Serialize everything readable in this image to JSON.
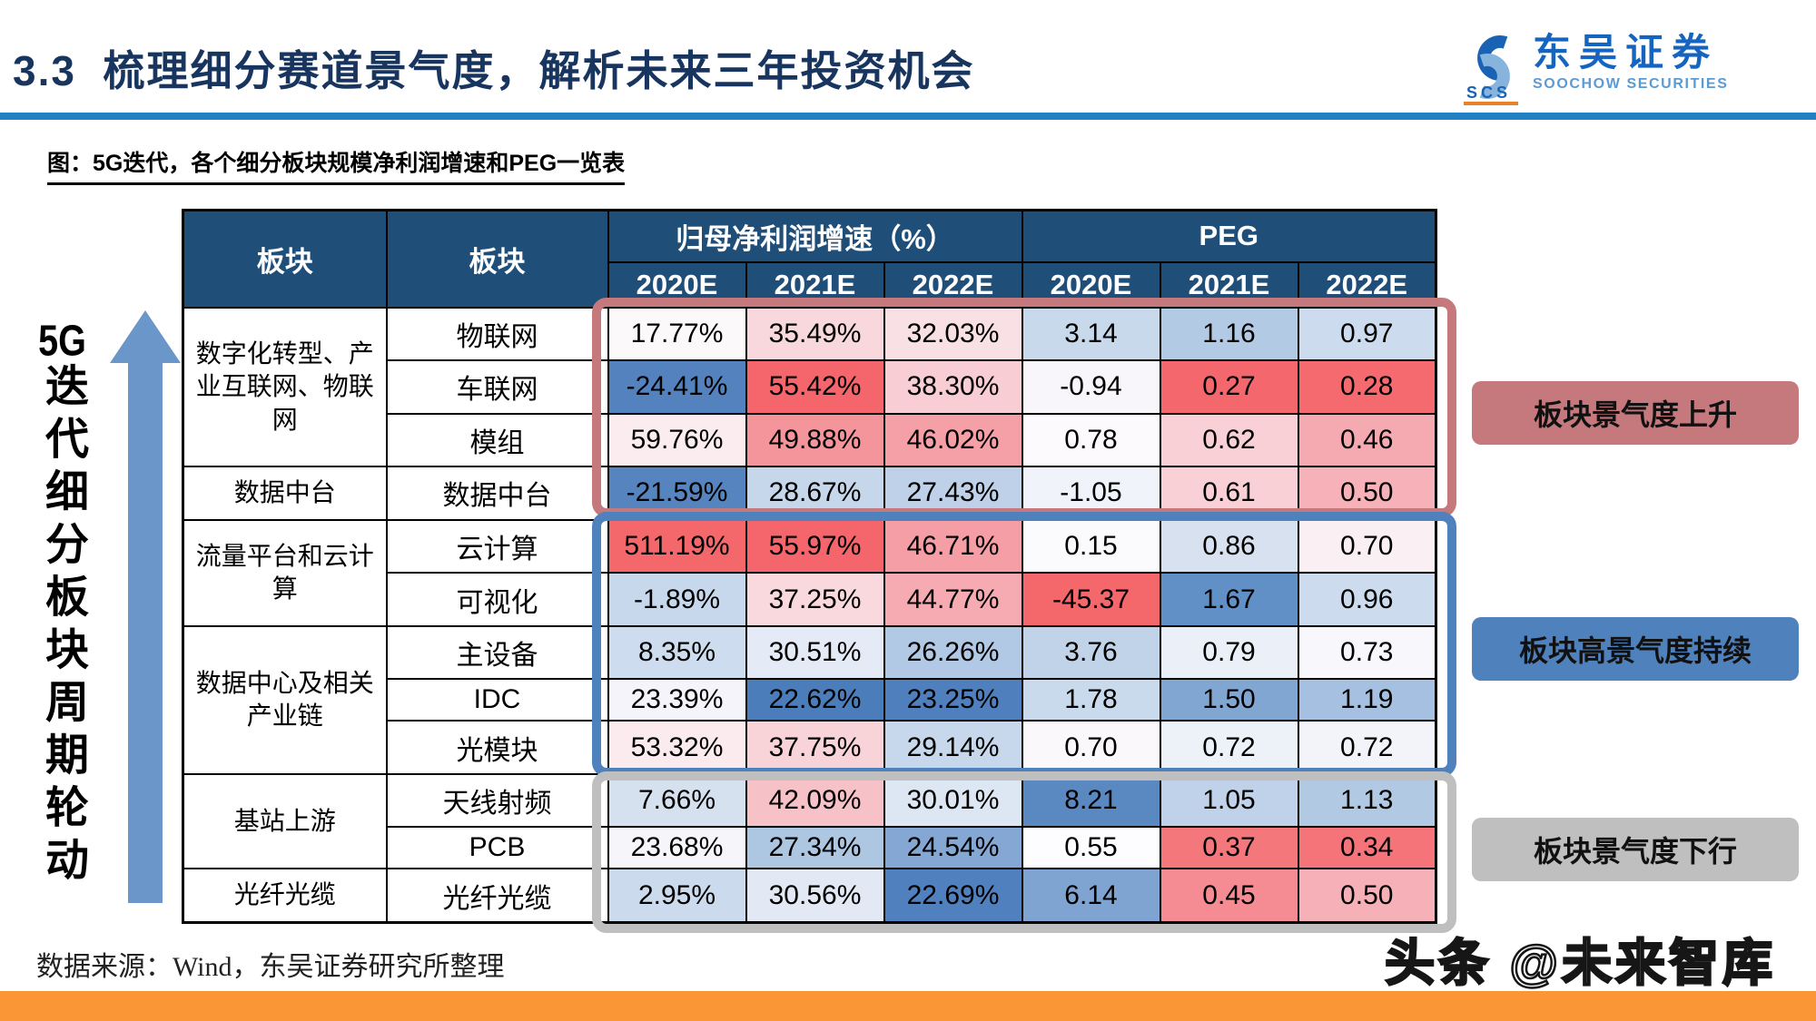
{
  "header": {
    "title": "3.3  梳理细分赛道景气度，解析未来三年投资机会",
    "logo_cn": "东吴证券",
    "logo_en": "SOOCHOW SECURITIES",
    "logo_icon_text": "SCS"
  },
  "caption": "图：5G迭代，各个细分板块规模净利润增速和PEG一览表",
  "left_axis": {
    "vertical_label_head": "5G",
    "vertical_label_tail": "迭代细分板块周期轮动"
  },
  "chart_data": {
    "type": "table",
    "title": "5G迭代，各个细分板块规模净利润增速和PEG一览表",
    "header_bg": "#1F4E79",
    "column_group_headers": [
      {
        "label": "板块",
        "colspan": 1
      },
      {
        "label": "板块",
        "colspan": 1
      },
      {
        "label": "归母净利润增速（%）",
        "colspan": 3
      },
      {
        "label": "PEG",
        "colspan": 3
      }
    ],
    "sub_headers": [
      "2020E",
      "2021E",
      "2022E",
      "2020E",
      "2021E",
      "2022E"
    ],
    "rows": [
      {
        "group": "数字化转型、产业互联网、物联网",
        "group_span": 3,
        "segment": "物联网",
        "values": [
          "17.77%",
          "35.49%",
          "32.03%",
          "3.14",
          "1.16",
          "0.97"
        ],
        "cell_colors": [
          "#FCF9FB",
          "#F8D8DD",
          "#F9E0E4",
          "#C9D9EC",
          "#B3CAE4",
          "#CDDBEE"
        ]
      },
      {
        "segment": "车联网",
        "values": [
          "-24.41%",
          "55.42%",
          "38.30%",
          "-0.94",
          "0.27",
          "0.28"
        ],
        "cell_colors": [
          "#5382BE",
          "#F4666B",
          "#F8CED4",
          "#F8F6FA",
          "#F4686D",
          "#F46A6E"
        ]
      },
      {
        "segment": "模组",
        "values": [
          "59.76%",
          "49.88%",
          "46.02%",
          "0.78",
          "0.62",
          "0.46"
        ],
        "cell_colors": [
          "#FBECF0",
          "#F4949B",
          "#F59FA6",
          "#FCFAFC",
          "#F8D0D6",
          "#F5A9B0"
        ]
      },
      {
        "group": "数据中台",
        "group_span": 1,
        "segment": "数据中台",
        "values": [
          "-21.59%",
          "28.67%",
          "27.43%",
          "-1.05",
          "0.61",
          "0.50"
        ],
        "cell_colors": [
          "#5584BF",
          "#C6D7EB",
          "#BED1E8",
          "#F0F3F9",
          "#F8D0D6",
          "#F6B2B8"
        ]
      },
      {
        "group": "流量平台和云计算",
        "group_span": 2,
        "segment": "云计算",
        "values": [
          "511.19%",
          "55.97%",
          "46.71%",
          "0.15",
          "0.86",
          "0.70"
        ],
        "cell_colors": [
          "#F4686C",
          "#F4666B",
          "#F59EA5",
          "#FBFAFC",
          "#D7E1F0",
          "#FAF0F3"
        ]
      },
      {
        "segment": "可视化",
        "values": [
          "-1.89%",
          "37.25%",
          "44.77%",
          "-45.37",
          "1.67",
          "0.96"
        ],
        "cell_colors": [
          "#C8D8EC",
          "#F9D9DE",
          "#F6AAB1",
          "#F4686C",
          "#6190C6",
          "#CDDBEE"
        ]
      },
      {
        "group": "数据中心及相关产业链",
        "group_span": 3,
        "segment": "主设备",
        "values": [
          "8.35%",
          "30.51%",
          "26.26%",
          "3.76",
          "0.79",
          "0.73"
        ],
        "cell_colors": [
          "#CEDCEF",
          "#E4EBF6",
          "#B1C9E4",
          "#C1D3E9",
          "#EAEFF8",
          "#F8F7FB"
        ]
      },
      {
        "segment": "IDC",
        "values": [
          "23.39%",
          "22.62%",
          "23.25%",
          "1.78",
          "1.50",
          "1.19"
        ],
        "cell_colors": [
          "#F5F4FA",
          "#4B7DBB",
          "#4F80BD",
          "#CADAED",
          "#82A6D2",
          "#A5C0E0"
        ]
      },
      {
        "segment": "光模块",
        "values": [
          "53.32%",
          "37.75%",
          "29.14%",
          "0.70",
          "0.72",
          "0.72"
        ],
        "cell_colors": [
          "#FBEAEE",
          "#F8D4D9",
          "#C8D8EC",
          "#FBF8FB",
          "#EDF1F8",
          "#F3F4FA"
        ]
      },
      {
        "group": "基站上游",
        "group_span": 2,
        "segment": "天线射频",
        "values": [
          "7.66%",
          "42.09%",
          "30.01%",
          "8.21",
          "1.05",
          "1.13"
        ],
        "cell_colors": [
          "#D6E1F0",
          "#F7C1C8",
          "#DDE6F3",
          "#5A89C2",
          "#BFD2E9",
          "#B2C9E4"
        ]
      },
      {
        "segment": "PCB",
        "values": [
          "23.68%",
          "27.34%",
          "24.54%",
          "0.55",
          "0.37",
          "0.34"
        ],
        "cell_colors": [
          "#F6F5FA",
          "#ADC6E2",
          "#84A7D3",
          "#FDFDFF",
          "#F4777C",
          "#F4747A"
        ]
      },
      {
        "group": "光纤光缆",
        "group_span": 1,
        "segment": "光纤光缆",
        "values": [
          "2.95%",
          "30.56%",
          "22.69%",
          "6.14",
          "0.45",
          "0.50"
        ],
        "cell_colors": [
          "#CCDAEE",
          "#E2E9F5",
          "#5080BD",
          "#80A4D1",
          "#F58C93",
          "#F6B0B7"
        ]
      }
    ]
  },
  "annotations": [
    {
      "label": "板块景气度上升",
      "color": "#C5797D"
    },
    {
      "label": "板块高景气度持续",
      "color": "#4F81BD"
    },
    {
      "label": "板块景气度下行",
      "color": "#BFBFBF"
    }
  ],
  "footer": {
    "source": "数据来源：Wind，东吴证券研究所整理",
    "watermark": "头条 @未来智库",
    "bottom_bar_color": "#FB9637"
  }
}
